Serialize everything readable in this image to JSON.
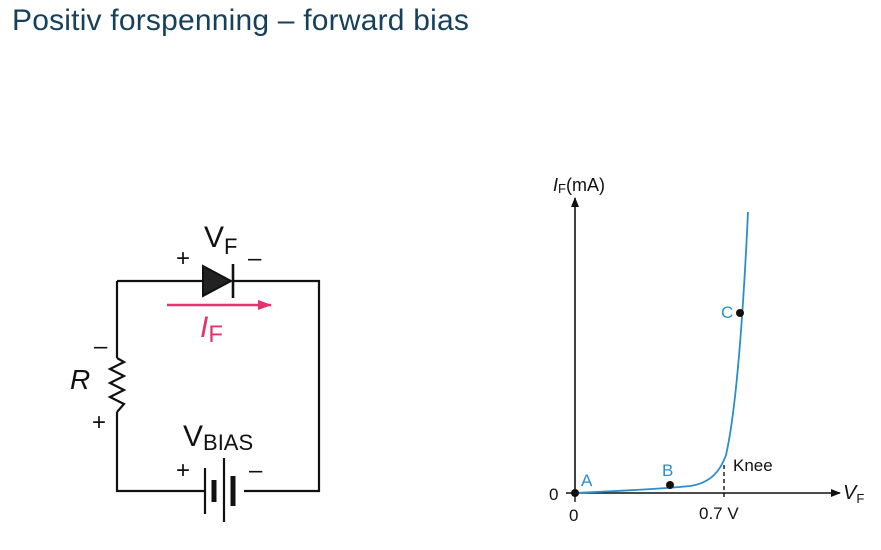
{
  "title": "Positiv forspenning – forward bias",
  "circuit": {
    "vf": {
      "main": "V",
      "sub": "F"
    },
    "diode_plus": "+",
    "diode_minus": "–",
    "current": {
      "main": "I",
      "sub": "F"
    },
    "resistor_label": "R",
    "resistor_minus": "–",
    "resistor_plus": "+",
    "vbias": {
      "main": "V",
      "sub": "BIAS"
    },
    "battery_plus": "+",
    "battery_minus": "–"
  },
  "graph": {
    "y_axis": {
      "main": "I",
      "sub": "F",
      "unit": "(mA)"
    },
    "x_axis": {
      "main": "V",
      "sub": "F"
    },
    "origin_x": "0",
    "origin_y": "0",
    "knee_tick": "0.7 V",
    "knee_label": "Knee",
    "points": [
      "A",
      "B",
      "C"
    ]
  },
  "colors": {
    "title": "#17405a",
    "current_arrow": "#e0336f",
    "curve": "#2a8fc9",
    "points": "#2a8fc9"
  }
}
